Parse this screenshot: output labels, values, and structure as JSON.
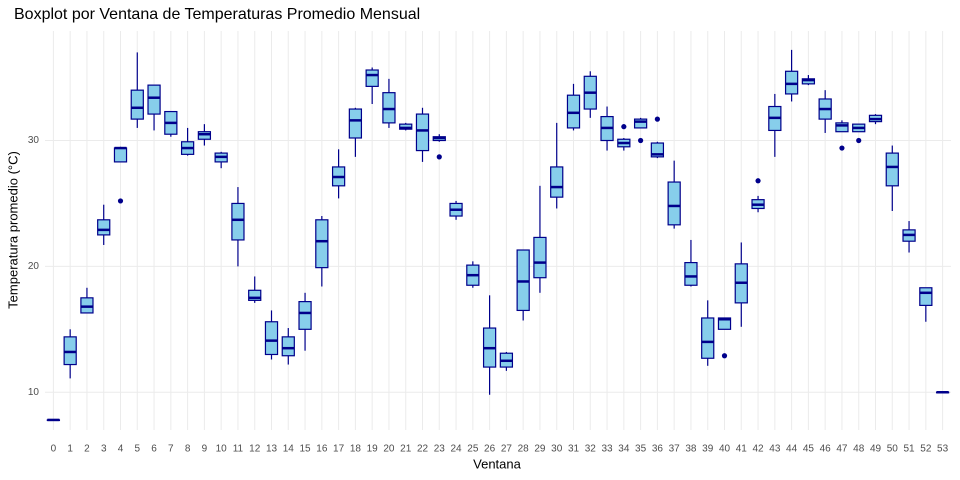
{
  "chart_data": {
    "type": "boxplot",
    "title": "Boxplot por Ventana de Temperaturas Promedio Mensual",
    "x_label": "Ventana",
    "y_label": "Temperatura promedio (°C)",
    "categories": [
      "0",
      "1",
      "2",
      "3",
      "4",
      "5",
      "6",
      "7",
      "8",
      "9",
      "10",
      "11",
      "12",
      "13",
      "14",
      "15",
      "16",
      "17",
      "18",
      "19",
      "20",
      "21",
      "22",
      "23",
      "24",
      "25",
      "26",
      "27",
      "28",
      "29",
      "30",
      "31",
      "32",
      "33",
      "34",
      "35",
      "36",
      "37",
      "38",
      "39",
      "40",
      "41",
      "42",
      "43",
      "44",
      "45",
      "46",
      "47",
      "48",
      "49",
      "50",
      "51",
      "52",
      "53"
    ],
    "min": [
      7.8,
      11.1,
      16.3,
      21.7,
      28.3,
      31.0,
      30.8,
      30.3,
      28.8,
      29.6,
      27.8,
      20.0,
      17.1,
      12.6,
      12.2,
      13.3,
      18.4,
      25.4,
      28.7,
      32.9,
      31.0,
      30.8,
      28.3,
      29.9,
      23.7,
      18.3,
      9.8,
      11.7,
      15.7,
      17.9,
      24.6,
      30.8,
      31.8,
      29.2,
      29.2,
      31.0,
      28.6,
      23.0,
      18.4,
      12.1,
      15.0,
      15.2,
      24.3,
      28.7,
      33.1,
      34.4,
      30.6,
      30.7,
      30.7,
      31.3,
      24.4,
      21.1,
      15.6,
      10.0
    ],
    "q1": [
      7.8,
      12.2,
      16.3,
      22.5,
      28.3,
      31.7,
      32.1,
      30.5,
      28.9,
      30.1,
      28.3,
      22.1,
      17.3,
      13.0,
      12.9,
      15.0,
      19.9,
      26.4,
      30.2,
      34.3,
      31.4,
      30.9,
      29.2,
      30.0,
      24.0,
      18.5,
      12.0,
      12.0,
      16.5,
      19.1,
      25.5,
      31.0,
      32.5,
      30.0,
      29.5,
      31.0,
      28.7,
      23.3,
      18.5,
      12.7,
      15.0,
      17.1,
      24.6,
      30.8,
      33.7,
      34.5,
      31.7,
      30.7,
      30.7,
      31.5,
      26.4,
      22.0,
      16.9,
      10.0
    ],
    "median": [
      7.8,
      13.2,
      16.8,
      22.9,
      29.4,
      32.6,
      33.4,
      31.4,
      29.4,
      30.5,
      28.7,
      23.7,
      17.5,
      14.1,
      13.5,
      16.3,
      22.0,
      27.1,
      31.6,
      35.2,
      32.5,
      31.0,
      30.8,
      30.2,
      24.5,
      19.3,
      13.5,
      12.5,
      18.8,
      20.3,
      26.3,
      32.2,
      33.8,
      31.0,
      29.8,
      31.5,
      28.9,
      24.8,
      19.2,
      14.0,
      15.8,
      18.7,
      24.9,
      31.8,
      34.5,
      34.8,
      32.5,
      31.2,
      31.0,
      31.7,
      27.9,
      22.5,
      17.9,
      10.0
    ],
    "q3": [
      7.8,
      14.4,
      17.5,
      23.7,
      29.4,
      34.0,
      34.4,
      32.3,
      29.9,
      30.7,
      29.0,
      25.0,
      18.1,
      15.6,
      14.4,
      17.2,
      23.7,
      27.9,
      32.5,
      35.6,
      33.8,
      31.3,
      32.1,
      30.3,
      25.0,
      20.1,
      15.1,
      13.1,
      21.3,
      22.3,
      27.9,
      33.6,
      35.1,
      31.9,
      30.1,
      31.7,
      29.8,
      26.7,
      20.3,
      15.9,
      15.9,
      20.2,
      25.3,
      32.7,
      35.5,
      34.9,
      33.3,
      31.4,
      31.3,
      32.0,
      29.0,
      22.9,
      18.3,
      10.0
    ],
    "max": [
      7.8,
      15.0,
      18.3,
      24.9,
      29.5,
      37.0,
      34.4,
      32.3,
      31.0,
      31.3,
      29.1,
      26.3,
      19.2,
      16.5,
      15.1,
      17.9,
      24.0,
      29.3,
      32.6,
      35.8,
      34.9,
      31.4,
      32.6,
      30.5,
      25.2,
      20.4,
      17.7,
      13.2,
      21.3,
      26.4,
      31.4,
      34.5,
      35.5,
      32.7,
      30.2,
      31.8,
      29.9,
      28.4,
      22.1,
      17.3,
      15.9,
      21.9,
      25.6,
      33.7,
      37.2,
      35.2,
      34.0,
      31.6,
      31.3,
      32.1,
      29.6,
      23.6,
      18.3,
      10.0
    ],
    "outliers": [
      [],
      [],
      [],
      [],
      [
        25.2
      ],
      [],
      [],
      [],
      [],
      [],
      [],
      [],
      [],
      [],
      [],
      [],
      [],
      [],
      [],
      [],
      [],
      [],
      [],
      [
        28.7
      ],
      [],
      [],
      [],
      [],
      [],
      [],
      [],
      [],
      [],
      [],
      [
        31.1
      ],
      [
        30.0
      ],
      [
        31.7
      ],
      [],
      [],
      [],
      [
        12.9
      ],
      [],
      [
        26.8
      ],
      [],
      [],
      [],
      [],
      [
        29.4
      ],
      [
        30.0
      ],
      [],
      [],
      [],
      [],
      []
    ],
    "fill_color": "#87ceeb",
    "line_color": "#00008b",
    "ylim": [
      7.0,
      38.7
    ],
    "yticks": [
      10,
      20,
      30
    ],
    "grid": true
  }
}
